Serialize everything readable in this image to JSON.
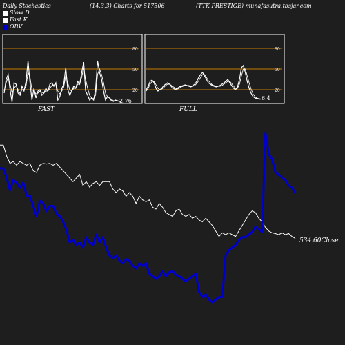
{
  "header": {
    "left": "Daily Stochastics",
    "middle": "(14,3,3) Charts for 517506",
    "right": "(TTK PRESTIGE) munafasutra.tbsjar.com"
  },
  "legend": [
    {
      "label": "Slow  D",
      "color": "#ffffff"
    },
    {
      "label": "Fast K",
      "color": "#ffffff"
    },
    {
      "label": "OBV",
      "color": "#0000cc"
    }
  ],
  "chart_data": [
    {
      "type": "line",
      "title": "FAST",
      "ylim": [
        0,
        100
      ],
      "yticks": [
        20,
        50,
        80
      ],
      "hlines": [
        20,
        50,
        80
      ],
      "last_value_label": "2.76",
      "x": [
        1,
        2,
        3,
        4,
        5,
        6,
        7,
        8,
        9,
        10,
        11,
        12,
        13,
        14,
        15,
        16,
        17,
        18,
        19,
        20,
        21,
        22,
        23,
        24,
        25,
        26,
        27,
        28,
        29,
        30,
        31,
        32,
        33,
        34,
        35,
        36,
        37,
        38,
        39,
        40,
        41,
        42,
        43,
        44,
        45,
        46,
        47,
        48,
        49,
        50,
        51,
        52,
        53,
        54,
        55,
        56,
        57,
        58,
        59,
        60
      ],
      "series": [
        {
          "name": "Fast K",
          "values": [
            15,
            35,
            42,
            20,
            2,
            30,
            28,
            15,
            12,
            25,
            18,
            32,
            62,
            30,
            5,
            22,
            8,
            18,
            20,
            12,
            15,
            22,
            18,
            28,
            30,
            25,
            30,
            5,
            10,
            22,
            28,
            52,
            20,
            12,
            18,
            25,
            22,
            32,
            28,
            45,
            60,
            18,
            12,
            5,
            8,
            5,
            20,
            62,
            45,
            35,
            18,
            5,
            10,
            8,
            4,
            3,
            5,
            4,
            3,
            2.76
          ]
        },
        {
          "name": "Slow  D",
          "values": [
            18,
            30,
            38,
            28,
            15,
            22,
            26,
            20,
            14,
            20,
            20,
            25,
            45,
            38,
            20,
            18,
            14,
            15,
            18,
            16,
            15,
            18,
            18,
            22,
            26,
            27,
            28,
            18,
            14,
            18,
            24,
            40,
            30,
            20,
            18,
            22,
            22,
            28,
            28,
            38,
            52,
            35,
            22,
            12,
            8,
            7,
            12,
            42,
            50,
            42,
            30,
            15,
            10,
            8,
            6,
            4,
            4,
            4,
            3,
            3
          ]
        }
      ]
    },
    {
      "type": "line",
      "title": "FULL",
      "ylim": [
        0,
        100
      ],
      "yticks": [
        20,
        50,
        80
      ],
      "hlines": [
        20,
        50,
        80
      ],
      "last_value_label": "6.4",
      "x": [
        1,
        2,
        3,
        4,
        5,
        6,
        7,
        8,
        9,
        10,
        11,
        12,
        13,
        14,
        15,
        16,
        17,
        18,
        19,
        20,
        21,
        22,
        23,
        24,
        25,
        26,
        27,
        28,
        29,
        30,
        31,
        32,
        33,
        34,
        35,
        36,
        37,
        38,
        39,
        40,
        41,
        42,
        43,
        44,
        45,
        46,
        47,
        48,
        49,
        50,
        51,
        52,
        53,
        54,
        55,
        56,
        57,
        58,
        59,
        60
      ],
      "series": [
        {
          "name": "Full K",
          "values": [
            20,
            25,
            32,
            34,
            30,
            22,
            18,
            20,
            22,
            26,
            28,
            30,
            28,
            24,
            22,
            20,
            22,
            24,
            25,
            26,
            27,
            26,
            25,
            24,
            26,
            28,
            32,
            38,
            42,
            45,
            40,
            35,
            30,
            28,
            26,
            25,
            24,
            25,
            26,
            28,
            30,
            32,
            35,
            30,
            26,
            22,
            20,
            24,
            35,
            52,
            55,
            45,
            32,
            22,
            15,
            10,
            8,
            7,
            6.5,
            6.4
          ]
        },
        {
          "name": "Full D",
          "values": [
            18,
            22,
            28,
            32,
            32,
            27,
            22,
            20,
            21,
            23,
            26,
            28,
            28,
            26,
            24,
            22,
            21,
            22,
            24,
            25,
            26,
            26,
            26,
            25,
            25,
            26,
            29,
            33,
            38,
            42,
            42,
            38,
            33,
            30,
            27,
            26,
            25,
            25,
            25,
            26,
            28,
            30,
            32,
            32,
            29,
            25,
            22,
            22,
            28,
            40,
            50,
            50,
            40,
            30,
            21,
            14,
            10,
            8,
            7,
            6.5
          ]
        }
      ]
    },
    {
      "type": "line",
      "title": "",
      "last_value_label": "534.60Close",
      "x": [
        1,
        2,
        3,
        4,
        5,
        6,
        7,
        8,
        9,
        10,
        11,
        12,
        13,
        14,
        15,
        16,
        17,
        18,
        19,
        20,
        21,
        22,
        23,
        24,
        25,
        26,
        27,
        28,
        29,
        30,
        31,
        32,
        33,
        34,
        35,
        36,
        37,
        38,
        39,
        40,
        41,
        42,
        43,
        44,
        45,
        46,
        47,
        48,
        49,
        50,
        51,
        52,
        53,
        54,
        55,
        56,
        57,
        58,
        59,
        60,
        61,
        62,
        63,
        64,
        65,
        66,
        67,
        68,
        69,
        70,
        71,
        72,
        73,
        74,
        75,
        76,
        77,
        78,
        79,
        80,
        81,
        82,
        83,
        84,
        85,
        86,
        87,
        88,
        89,
        90
      ],
      "series": [
        {
          "name": "Close",
          "values": [
            790,
            790,
            760,
            740,
            745,
            735,
            745,
            740,
            735,
            740,
            720,
            715,
            735,
            740,
            738,
            740,
            735,
            740,
            730,
            720,
            710,
            700,
            690,
            700,
            710,
            680,
            690,
            675,
            685,
            690,
            680,
            690,
            690,
            690,
            670,
            660,
            670,
            665,
            650,
            660,
            650,
            630,
            650,
            640,
            635,
            640,
            620,
            615,
            630,
            620,
            605,
            600,
            595,
            610,
            615,
            600,
            595,
            600,
            590,
            595,
            585,
            580,
            590,
            580,
            570,
            555,
            540,
            550,
            545,
            550,
            545,
            540,
            555,
            570,
            585,
            600,
            610,
            605,
            590,
            580,
            565,
            555,
            550,
            548,
            545,
            550,
            545,
            548,
            540,
            534.6
          ]
        },
        {
          "name": "OBV",
          "values": [
            745,
            745,
            710,
            660,
            700,
            690,
            670,
            690,
            640,
            640,
            600,
            560,
            620,
            610,
            580,
            600,
            600,
            570,
            560,
            540,
            510,
            460,
            470,
            450,
            460,
            440,
            480,
            460,
            450,
            490,
            460,
            480,
            440,
            410,
            400,
            410,
            390,
            380,
            395,
            390,
            370,
            360,
            380,
            370,
            380,
            340,
            330,
            320,
            330,
            350,
            330,
            345,
            350,
            335,
            330,
            320,
            310,
            320,
            330,
            340,
            270,
            250,
            260,
            240,
            230,
            240,
            250,
            250,
            410,
            430,
            440,
            450,
            470,
            480,
            480,
            490,
            500,
            520,
            510,
            500,
            880,
            800,
            780,
            730,
            720,
            710,
            700,
            680,
            670,
            650
          ]
        }
      ]
    }
  ]
}
